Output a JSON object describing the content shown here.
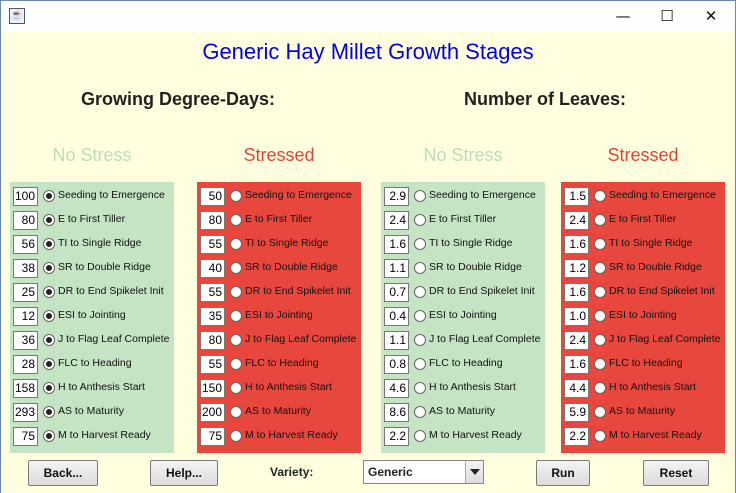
{
  "window": {
    "title": ""
  },
  "main_title": "Generic Hay Millet Growth Stages",
  "sections": {
    "gdd": "Growing Degree-Days:",
    "leaves": "Number of Leaves:"
  },
  "columns": [
    {
      "heading": "No Stress",
      "heading_color": "#bcdcbc",
      "panel": "green",
      "values": [
        "100",
        "80",
        "56",
        "38",
        "25",
        "12",
        "36",
        "28",
        "158",
        "293",
        "75"
      ],
      "selected": true
    },
    {
      "heading": "Stressed",
      "heading_color": "#e0453a",
      "panel": "red",
      "values": [
        "50",
        "80",
        "55",
        "40",
        "55",
        "35",
        "80",
        "55",
        "150",
        "200",
        "75"
      ],
      "selected": false
    },
    {
      "heading": "No Stress",
      "heading_color": "#bcdcbc",
      "panel": "green",
      "values": [
        "2.9",
        "2.4",
        "1.6",
        "1.1",
        "0.7",
        "0.4",
        "1.1",
        "0.8",
        "4.6",
        "8.6",
        "2.2"
      ],
      "selected": false
    },
    {
      "heading": "Stressed",
      "heading_color": "#e0453a",
      "panel": "red",
      "values": [
        "1.5",
        "2.4",
        "1.6",
        "1.2",
        "1.6",
        "1.0",
        "2.4",
        "1.6",
        "4.4",
        "5.9",
        "2.2"
      ],
      "selected": false
    }
  ],
  "stages": [
    "Seeding to Emergence",
    "E to First Tiller",
    "TI to Single Ridge",
    "SR to Double Ridge",
    "DR to End Spikelet Init",
    "ESI to Jointing",
    "J to Flag Leaf Complete",
    "FLC to Heading",
    "H to Anthesis Start",
    "AS to Maturity",
    "M to Harvest Ready"
  ],
  "buttons": {
    "back": "Back...",
    "help": "Help...",
    "run": "Run",
    "reset": "Reset"
  },
  "variety": {
    "label": "Variety:",
    "value": "Generic"
  },
  "colors": {
    "title": "#0000ee",
    "green_panel": "#c4e4c4",
    "red_panel": "#e8473e",
    "background": "#ffffe0"
  },
  "icons": {
    "minimize": "minimize-icon",
    "maximize": "maximize-icon",
    "close": "close-icon",
    "app": "java-app-icon"
  }
}
